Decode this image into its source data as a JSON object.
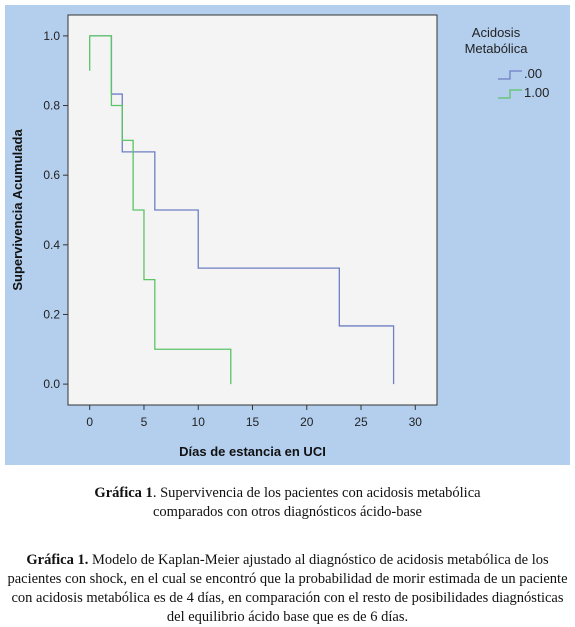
{
  "chart_data": {
    "type": "line",
    "subtype": "kaplan-meier-step",
    "title": "",
    "xlabel": "Días de estancia en UCI",
    "ylabel": "Supervivencia Acumulada",
    "xlim": [
      -2,
      32
    ],
    "ylim": [
      -0.06,
      1.06
    ],
    "xticks": [
      0,
      5,
      10,
      15,
      20,
      25,
      30
    ],
    "yticks": [
      0.0,
      0.2,
      0.4,
      0.6,
      0.8,
      1.0
    ],
    "xtick_labels": [
      "0",
      "5",
      "10",
      "15",
      "20",
      "25",
      "30"
    ],
    "ytick_labels": [
      "0.0",
      "0.2",
      "0.4",
      "0.6",
      "0.8",
      "1.0"
    ],
    "grid": false,
    "legend": {
      "placement": "right",
      "title_line1": "Acidosis",
      "title_line2": "Metabólica"
    },
    "series": [
      {
        "name": ".00",
        "color": "#6f7fc4",
        "start": [
          0,
          1.0
        ],
        "steps": [
          [
            2,
            0.833
          ],
          [
            3,
            0.667
          ],
          [
            6,
            0.5
          ],
          [
            10,
            0.333
          ],
          [
            23,
            0.167
          ],
          [
            28,
            0.0
          ]
        ],
        "end_x": 28
      },
      {
        "name": "1.00",
        "color": "#5bc466",
        "start": [
          0,
          0.9
        ],
        "pre": [
          [
            0,
            1.0
          ]
        ],
        "steps": [
          [
            2,
            0.8
          ],
          [
            3,
            0.7
          ],
          [
            4,
            0.5
          ],
          [
            5,
            0.3
          ],
          [
            6,
            0.1
          ]
        ],
        "end_x": 13,
        "end_drop": 0.0
      }
    ],
    "colors": {
      "outer_background": "#b4cfee",
      "plot_background": "#f4f4f4",
      "axis": "#333333"
    }
  },
  "captions": {
    "figure_label": "Gráfica 1",
    "figure_text_line1": ". Supervivencia de los pacientes con acidosis metabólica",
    "figure_text_line2": "comparados con otros diagnósticos ácido-base",
    "note_label": "Gráfica 1.",
    "note_text": " Modelo de Kaplan-Meier ajustado al diagnóstico de acidosis metabólica de los pacientes con shock, en el cual se encontró que la probabilidad de morir estimada de un paciente con acidosis metabólica es de 4 días, en comparación con el resto de posibilidades diagnósticas del equilibrio ácido base que es de 6 días."
  }
}
